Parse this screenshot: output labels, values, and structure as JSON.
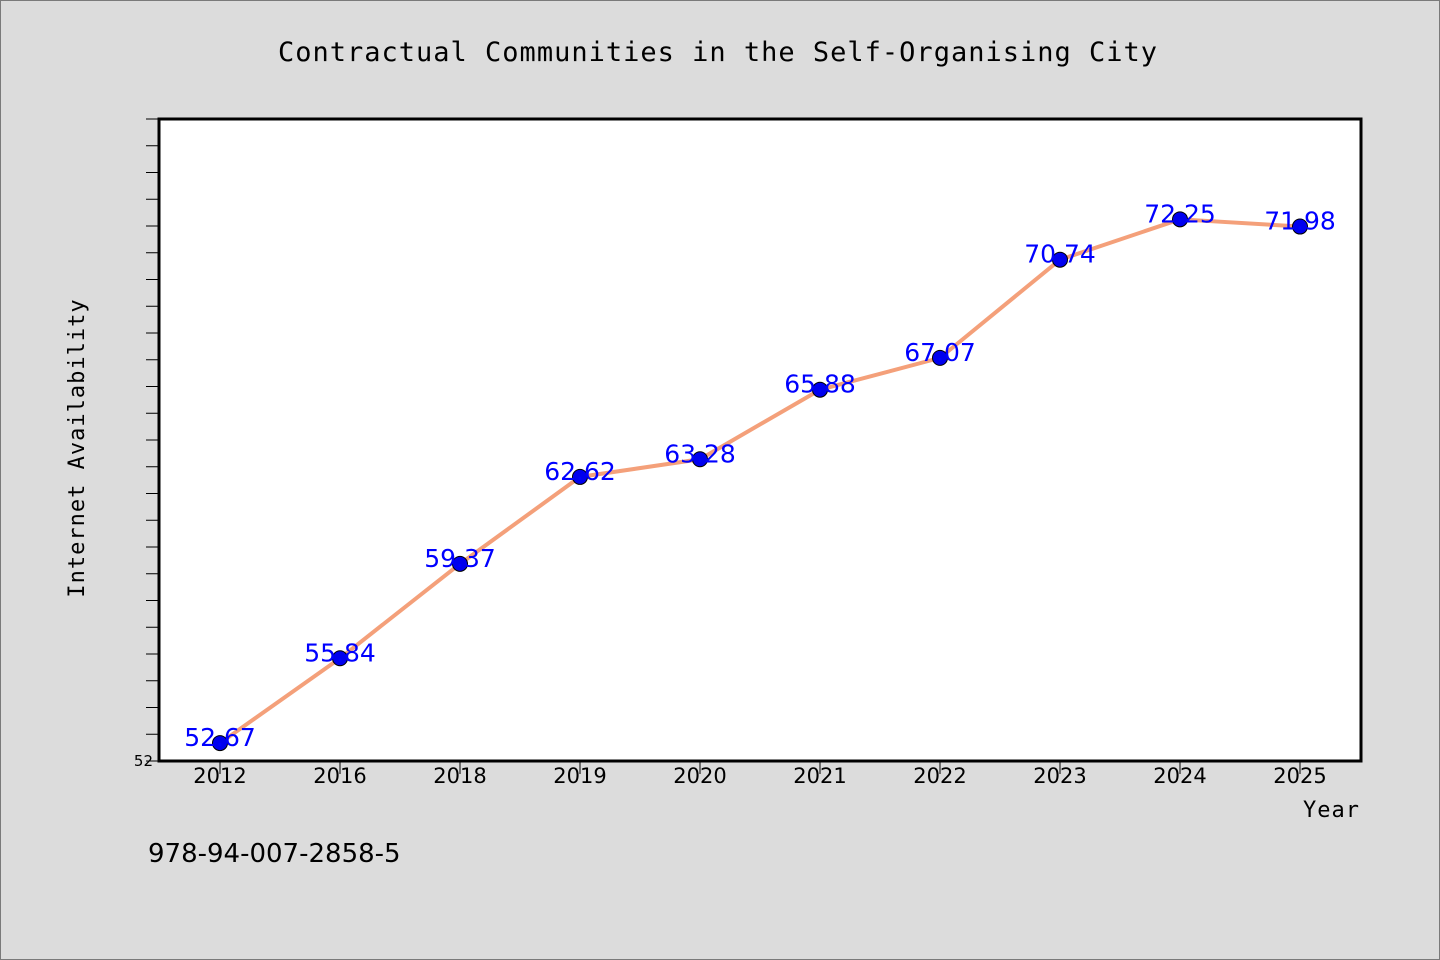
{
  "chart_data": {
    "type": "line",
    "title": "Contractual Communities in the Self-Organising City",
    "xlabel": "Year",
    "ylabel": "Internet Availability",
    "categories": [
      "2012",
      "2016",
      "2018",
      "2019",
      "2020",
      "2021",
      "2022",
      "2023",
      "2024",
      "2025"
    ],
    "series": [
      {
        "values": [
          52.67,
          55.84,
          59.37,
          62.62,
          63.28,
          65.88,
          67.07,
          70.74,
          72.25,
          71.98
        ]
      }
    ],
    "data_labels": [
      "52.67",
      "55.84",
      "59.37",
      "62.62",
      "63.28",
      "65.88",
      "67.07",
      "70.74",
      "72.25",
      "71.98"
    ],
    "ylim": [
      52,
      76
    ],
    "y_tick_labels": [
      "52"
    ],
    "grid": false,
    "legend": "none",
    "colors": {
      "line": "#f4a07a",
      "marker": "#0000ee",
      "data_label": "#0000ff",
      "background": "#dcdcdc",
      "plot_area": "#ffffff"
    }
  },
  "footnote": "978-94-007-2858-5"
}
